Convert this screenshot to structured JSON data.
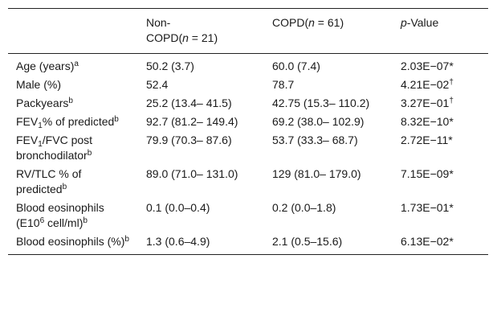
{
  "table": {
    "headers": [
      {
        "text": "",
        "italic_n": ""
      },
      {
        "line1": "Non-",
        "line2_pre": "COPD(",
        "n": "n",
        "line2_post": " = 21)"
      },
      {
        "pre": "COPD(",
        "n": "n",
        "post": " = 61)"
      },
      {
        "p": "p",
        "rest": "-Value"
      }
    ],
    "rows": [
      {
        "label": "Age (years)",
        "label_sup": "a",
        "non_copd": "50.2 (3.7)",
        "copd": "60.0 (7.4)",
        "pvalue": "2.03E−07*"
      },
      {
        "label": "Male (%)",
        "non_copd": "52.4",
        "copd": "78.7",
        "pvalue": "4.21E−02",
        "pvalue_sup": "†"
      },
      {
        "label": "Packyears",
        "label_sup": "b",
        "non_copd": "25.2 (13.4– 41.5)",
        "copd": "42.75 (15.3– 110.2)",
        "pvalue": "3.27E−01",
        "pvalue_sup": "†"
      },
      {
        "label_pre": "FEV",
        "label_sub": "1",
        "label_post": "% of predicted",
        "label_sup": "b",
        "non_copd": "92.7 (81.2– 149.4)",
        "copd": "69.2 (38.0– 102.9)",
        "pvalue": "8.32E−10*"
      },
      {
        "label_pre": "FEV",
        "label_sub": "1",
        "label_post": "/FVC post bronchodilator",
        "label_sup": "b",
        "non_copd": "79.9 (70.3– 87.6)",
        "copd": "53.7 (33.3– 68.7)",
        "pvalue": "2.72E−11*"
      },
      {
        "label": "RV/TLC % of predicted",
        "label_sup": "b",
        "non_copd": "89.0 (71.0– 131.0)",
        "copd": "129 (81.0– 179.0)",
        "pvalue": "7.15E−09*"
      },
      {
        "label_pre": "Blood eosinophils (E10",
        "label_exp": "6",
        "label_post": " cell/ml)",
        "label_sup": "b",
        "non_copd": "0.1 (0.0–0.4)",
        "copd": "0.2 (0.0–1.8)",
        "pvalue": "1.73E−01*"
      },
      {
        "label": "Blood eosinophils (%)",
        "label_sup": "b",
        "non_copd": "1.3 (0.6–4.9)",
        "copd": "2.1 (0.5–15.6)",
        "pvalue": "6.13E−02*"
      }
    ]
  }
}
